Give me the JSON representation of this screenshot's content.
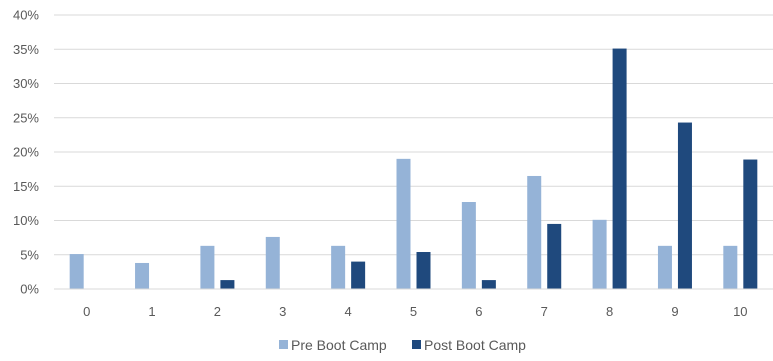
{
  "chart_data": {
    "type": "bar",
    "categories": [
      "0",
      "1",
      "2",
      "3",
      "4",
      "5",
      "6",
      "7",
      "8",
      "9",
      "10"
    ],
    "series": [
      {
        "name": "Pre Boot Camp",
        "color": "#95b3d7",
        "values": [
          5.1,
          3.8,
          6.3,
          7.6,
          6.3,
          19.0,
          12.7,
          16.5,
          10.1,
          6.3,
          6.3
        ]
      },
      {
        "name": "Post Boot Camp",
        "color": "#1f497d",
        "values": [
          0,
          0,
          1.3,
          0,
          4.0,
          5.4,
          1.3,
          9.5,
          35.1,
          24.3,
          18.9
        ]
      }
    ],
    "ylim": [
      0,
      40
    ],
    "yticks": [
      0,
      5,
      10,
      15,
      20,
      25,
      30,
      35,
      40
    ],
    "ytick_labels": [
      "0%",
      "5%",
      "10%",
      "15%",
      "20%",
      "25%",
      "30%",
      "35%",
      "40%"
    ],
    "title": "",
    "xlabel": "",
    "ylabel": "",
    "grid": true,
    "legend_position": "bottom",
    "gridline_color": "#d9d9d9"
  }
}
